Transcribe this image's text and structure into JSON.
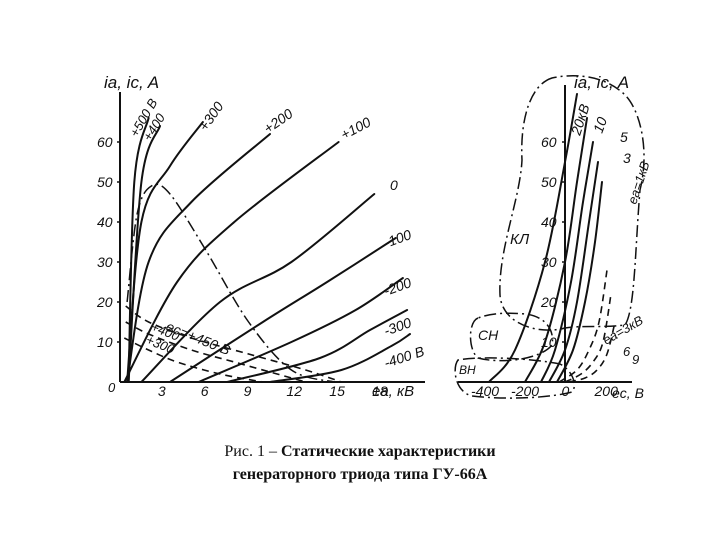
{
  "caption": {
    "prefix": "Рис. 1 – ",
    "line1": "Статические характеристики",
    "line2": "генераторного триода типа ГУ-66А"
  },
  "chart_data": [
    {
      "type": "line",
      "ylabel": "ia, ic, A",
      "xlabel": "ea, кВ",
      "xlim": [
        0,
        21
      ],
      "ylim": [
        0,
        70
      ],
      "x_ticks": [
        "0",
        "3",
        "6",
        "9",
        "12",
        "15",
        "18"
      ],
      "y_ticks": [
        "10",
        "20",
        "30",
        "40",
        "50",
        "60"
      ],
      "series": [
        {
          "name": "+500 В",
          "kind": "anode",
          "x": [
            0.6,
            1.0,
            2.0
          ],
          "y": [
            0,
            50,
            66
          ]
        },
        {
          "name": "+400",
          "kind": "anode",
          "x": [
            0.6,
            1.5,
            2.8
          ],
          "y": [
            0,
            50,
            64
          ]
        },
        {
          "name": "+300",
          "kind": "anode",
          "x": [
            0.5,
            1.5,
            3.5,
            5.8
          ],
          "y": [
            0,
            40,
            54,
            65
          ]
        },
        {
          "name": "+200",
          "kind": "anode",
          "x": [
            0.5,
            2,
            5,
            10.5
          ],
          "y": [
            0,
            30,
            45,
            62
          ]
        },
        {
          "name": "+100",
          "kind": "anode",
          "x": [
            0.3,
            4,
            8,
            15.3
          ],
          "y": [
            0,
            25,
            40,
            60
          ]
        },
        {
          "name": "0",
          "kind": "anode",
          "x": [
            1.5,
            7,
            12,
            17.8
          ],
          "y": [
            0,
            20,
            30,
            47
          ]
        },
        {
          "name": "-100",
          "kind": "anode",
          "x": [
            3.5,
            10,
            14.5,
            19.3
          ],
          "y": [
            0,
            15,
            25,
            36
          ]
        },
        {
          "name": "-200",
          "kind": "anode",
          "x": [
            5.5,
            12,
            16.5,
            19.8
          ],
          "y": [
            0,
            10,
            18,
            26
          ]
        },
        {
          "name": "-300",
          "kind": "anode",
          "x": [
            7.5,
            14,
            17.5,
            20.1
          ],
          "y": [
            0,
            6,
            13,
            18
          ]
        },
        {
          "name": "-400 В",
          "kind": "anode",
          "x": [
            10.5,
            15.5,
            19,
            20.3
          ],
          "y": [
            0,
            3,
            9,
            12
          ]
        },
        {
          "name": "ec=+450 В",
          "kind": "grid",
          "x": [
            0.4,
            2,
            5,
            9,
            13,
            15.5
          ],
          "y": [
            19,
            15,
            11,
            7,
            3,
            0
          ]
        },
        {
          "name": "+400",
          "kind": "grid",
          "x": [
            0.4,
            2,
            5,
            8,
            11,
            13
          ],
          "y": [
            15,
            12,
            8,
            5,
            2,
            0
          ]
        },
        {
          "name": "+300",
          "kind": "grid",
          "x": [
            0.3,
            2,
            4,
            7,
            10
          ],
          "y": [
            11,
            8,
            5,
            2,
            0
          ]
        },
        {
          "name": "boundary",
          "kind": "boundary",
          "x": [
            0.5,
            1.2,
            2.2,
            3.5,
            6,
            9,
            12,
            15
          ],
          "y": [
            20,
            42,
            49,
            47,
            33,
            15,
            3,
            0
          ]
        }
      ]
    },
    {
      "type": "line",
      "ylabel": "ia, ic, A",
      "xlabel": "ec, В",
      "xlim": [
        -500,
        300
      ],
      "ylim": [
        0,
        75
      ],
      "x_ticks": [
        "-400",
        "-200",
        "0",
        "200"
      ],
      "y_ticks": [
        "10",
        "20",
        "30",
        "40",
        "50",
        "60"
      ],
      "series": [
        {
          "name": "20кВ",
          "kind": "anode",
          "x": [
            -380,
            -250,
            -100,
            0,
            60
          ],
          "y": [
            0,
            8,
            30,
            55,
            72
          ]
        },
        {
          "name": "10",
          "kind": "anode",
          "x": [
            -200,
            -100,
            0,
            60,
            110
          ],
          "y": [
            0,
            10,
            30,
            50,
            66
          ]
        },
        {
          "name": "5",
          "kind": "anode",
          "x": [
            -120,
            -50,
            30,
            90,
            140
          ],
          "y": [
            0,
            8,
            25,
            45,
            60
          ]
        },
        {
          "name": "3",
          "kind": "anode",
          "x": [
            -80,
            0,
            60,
            120,
            165
          ],
          "y": [
            0,
            8,
            20,
            40,
            55
          ]
        },
        {
          "name": "ea=1кВ",
          "kind": "anode",
          "x": [
            -40,
            40,
            100,
            150,
            185
          ],
          "y": [
            0,
            8,
            20,
            35,
            50
          ]
        },
        {
          "name": "ea=3кВ",
          "kind": "grid",
          "x": [
            -30,
            60,
            120,
            170,
            210
          ],
          "y": [
            0,
            3,
            8,
            15,
            28
          ]
        },
        {
          "name": "6",
          "kind": "grid",
          "x": [
            0,
            80,
            140,
            190,
            230
          ],
          "y": [
            0,
            2,
            5,
            10,
            22
          ]
        },
        {
          "name": "9",
          "kind": "grid",
          "x": [
            20,
            100,
            160,
            210,
            250
          ],
          "y": [
            0,
            1,
            3,
            7,
            15
          ]
        }
      ],
      "regions": [
        "КЛ",
        "СН",
        "ВН"
      ]
    }
  ]
}
